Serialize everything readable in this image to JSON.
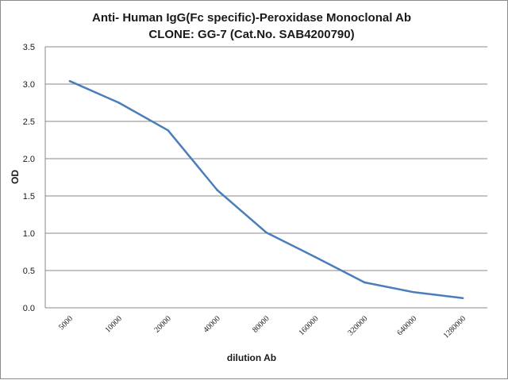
{
  "chart_data": {
    "type": "line",
    "title": "Anti- Human IgG(Fc specific)-Peroxidase Monoclonal Ab",
    "subtitle": "CLONE: GG-7 (Cat.No. SAB4200790)",
    "xlabel": "dilution Ab",
    "ylabel": "OD",
    "categories": [
      "5000",
      "10000",
      "20000",
      "40000",
      "80000",
      "160000",
      "320000",
      "640000",
      "1280000"
    ],
    "y_ticks": [
      "0.0",
      "0.5",
      "1.0",
      "1.5",
      "2.0",
      "2.5",
      "3.0",
      "3.5"
    ],
    "ylim": [
      0,
      3.5
    ],
    "grid": "horizontal",
    "legend": "none",
    "series": [
      {
        "values": [
          3.04,
          2.75,
          2.38,
          1.58,
          1.01,
          0.68,
          0.34,
          0.21,
          0.13
        ]
      }
    ],
    "colors": {
      "line": "#4a7ebb",
      "grid": "#8a8a8a"
    }
  }
}
